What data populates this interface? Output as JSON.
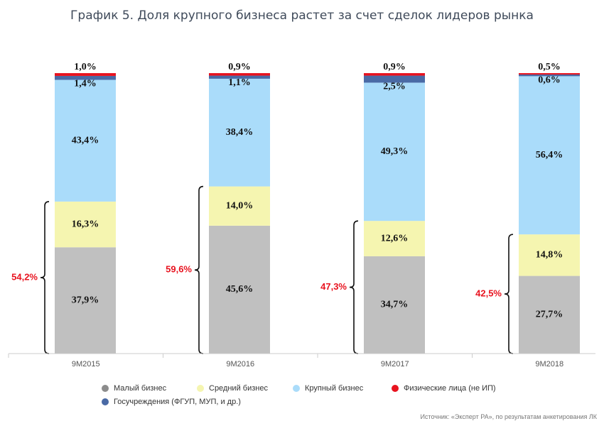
{
  "title": "График 5. Доля крупного бизнеса растет за счет сделок лидеров рынка",
  "source": "Источник: «Эксперт РА», по результатам анкетирования ЛК",
  "chart_data": {
    "type": "bar",
    "stacked": true,
    "categories": [
      "9M2015",
      "9M2016",
      "9M2017",
      "9M2018"
    ],
    "ylim": [
      0,
      100
    ],
    "series": [
      {
        "name": "Малый бизнес",
        "values": [
          37.9,
          45.6,
          34.7,
          27.7
        ],
        "labels": [
          "37,9%",
          "45,6%",
          "34,7%",
          "27,7%"
        ],
        "color": "#c0c0c0"
      },
      {
        "name": "Средний бизнес",
        "values": [
          16.3,
          14.0,
          12.6,
          14.8
        ],
        "labels": [
          "16,3%",
          "14,0%",
          "12,6%",
          "14,8%"
        ],
        "color": "#f5f5b0"
      },
      {
        "name": "Крупный бизнес",
        "values": [
          43.4,
          38.4,
          49.3,
          56.4
        ],
        "labels": [
          "43,4%",
          "38,4%",
          "49,3%",
          "56,4%"
        ],
        "color": "#aadcfa"
      },
      {
        "name": "Госучреждения (ФГУП, МУП, и др.)",
        "values": [
          1.4,
          1.1,
          2.5,
          0.6
        ],
        "labels": [
          "1,4%",
          "1,1%",
          "2,5%",
          "0,6%"
        ],
        "color": "#4a6aa5"
      },
      {
        "name": "Физические лица (не ИП)",
        "values": [
          1.0,
          0.9,
          0.9,
          0.5
        ],
        "labels": [
          "1,0%",
          "0,9%",
          "0,9%",
          "0,5%"
        ],
        "color": "#e8131f"
      }
    ],
    "bracket_totals": {
      "values": [
        54.2,
        59.6,
        47.3,
        42.5
      ],
      "labels": [
        "54,2%",
        "59,6%",
        "47,3%",
        "42,5%"
      ],
      "color": "#e8131f"
    },
    "legend": {
      "placement": "bottom",
      "rows": [
        [
          "Малый бизнес",
          "Средний бизнес",
          "Крупный бизнес",
          "Физические лица (не ИП)"
        ],
        [
          "Госучреждения (ФГУП, МУП, и др.)"
        ]
      ],
      "marker_colors": {
        "Малый бизнес": "#8c8c8c",
        "Средний бизнес": "#f5f5b0",
        "Крупный бизнес": "#aadcfa",
        "Физические лица (не ИП)": "#e8131f",
        "Госучреждения (ФГУП, МУП, и др.)": "#4a6aa5"
      }
    },
    "grid": false
  }
}
